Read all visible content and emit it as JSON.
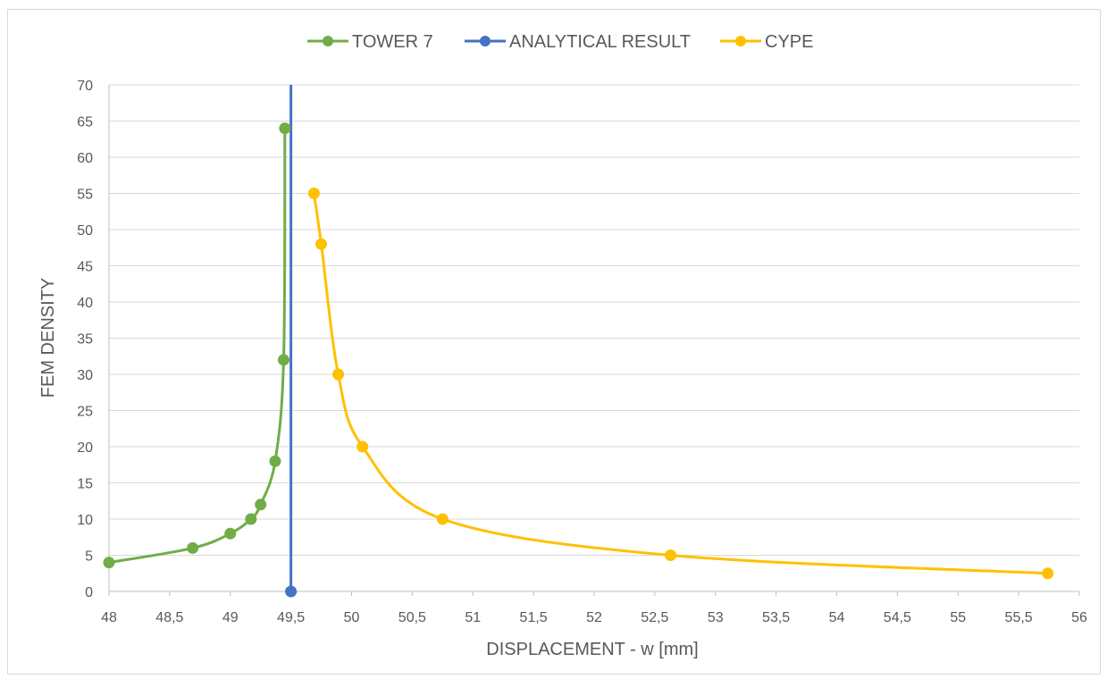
{
  "chart_data": {
    "type": "scatter",
    "xlabel": "DISPLACEMENT - w [mm]",
    "ylabel": "FEM DENSITY",
    "xlim": [
      48,
      56
    ],
    "ylim": [
      0,
      70
    ],
    "xticks": [
      "48",
      "48,5",
      "49",
      "49,5",
      "50",
      "50,5",
      "51",
      "51,5",
      "52",
      "52,5",
      "53",
      "53,5",
      "54",
      "54,5",
      "55",
      "55,5",
      "56"
    ],
    "yticks": [
      "0",
      "5",
      "10",
      "15",
      "20",
      "25",
      "30",
      "35",
      "40",
      "45",
      "50",
      "55",
      "60",
      "65",
      "70"
    ],
    "grid": "horizontal",
    "legend_position": "top",
    "series": [
      {
        "name": "TOWER 7",
        "color": "#70ad47",
        "points": [
          [
            48.0,
            4
          ],
          [
            48.69,
            6
          ],
          [
            49.0,
            8
          ],
          [
            49.17,
            10
          ],
          [
            49.25,
            12
          ],
          [
            49.37,
            18
          ],
          [
            49.44,
            32
          ],
          [
            49.45,
            64
          ]
        ]
      },
      {
        "name": "ANALYTICAL RESULT",
        "color": "#4472c4",
        "points": [
          [
            49.5,
            0
          ],
          [
            49.5,
            70
          ]
        ]
      },
      {
        "name": "CYPE",
        "color": "#ffc000",
        "points": [
          [
            55.74,
            2.5
          ],
          [
            52.63,
            5
          ],
          [
            50.75,
            10
          ],
          [
            50.09,
            20
          ],
          [
            49.89,
            30
          ],
          [
            49.75,
            48
          ],
          [
            49.69,
            55
          ]
        ]
      }
    ]
  }
}
